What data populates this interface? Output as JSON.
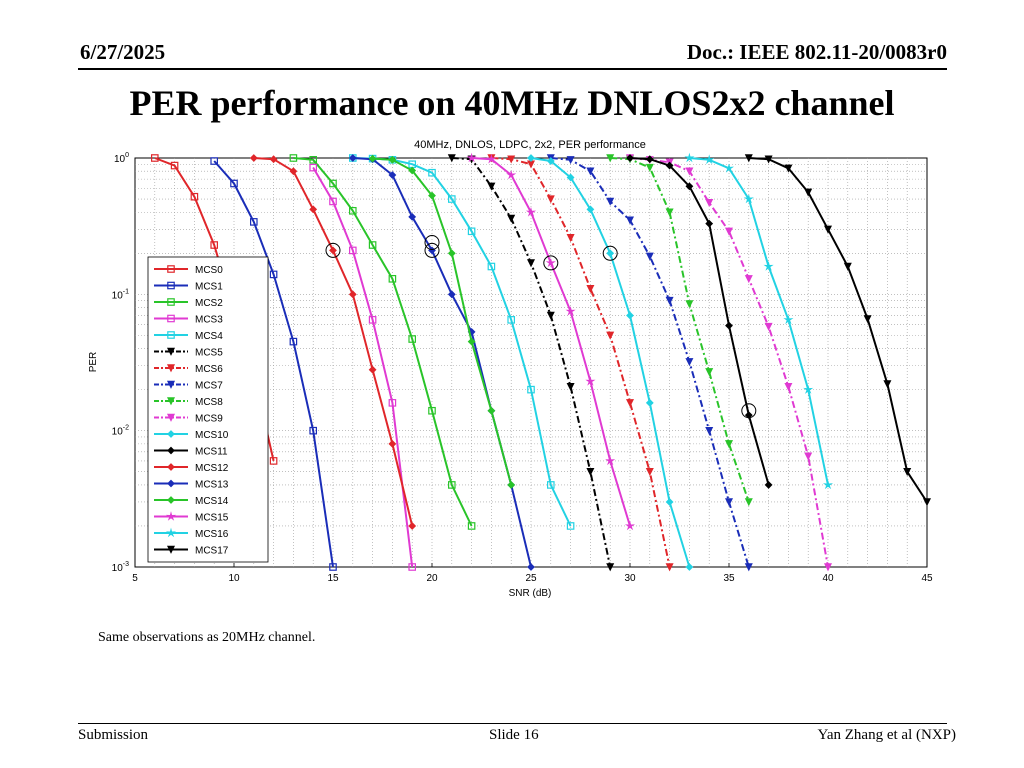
{
  "header": {
    "date": "6/27/2025",
    "doc_id": "Doc.: IEEE 802.11-20/0083r0"
  },
  "slide_title": "PER performance on 40MHz DNLOS2x2 channel",
  "note": "Same observations as 20MHz channel.",
  "footer": {
    "left": "Submission",
    "center": "Slide 16",
    "right": "Yan Zhang et al (NXP)"
  },
  "chart_data": {
    "type": "line",
    "title": "40MHz, DNLOS, LDPC, 2x2, PER performance",
    "xlabel": "SNR (dB)",
    "ylabel": "PER",
    "xlim": [
      5,
      45
    ],
    "ylim": [
      0.001,
      1
    ],
    "yscale": "log",
    "xticks": [
      5,
      10,
      15,
      20,
      25,
      30,
      35,
      40,
      45
    ],
    "yticks": [
      0.001,
      0.01,
      0.1,
      1
    ],
    "yticklabels": [
      {
        "base": "10",
        "exp": "-3"
      },
      {
        "base": "10",
        "exp": "-2"
      },
      {
        "base": "10",
        "exp": "-1"
      },
      {
        "base": "10",
        "exp": "0"
      }
    ],
    "grid": true,
    "legend_position": "left",
    "series": [
      {
        "name": "MCS0",
        "color": "#e0262a",
        "dash": "solid",
        "marker": "square",
        "x": [
          6,
          7,
          8,
          9,
          10,
          11,
          12
        ],
        "y": [
          1,
          0.88,
          0.52,
          0.23,
          0.075,
          0.026,
          0.006
        ]
      },
      {
        "name": "MCS1",
        "color": "#1a2db8",
        "dash": "solid",
        "marker": "square",
        "x": [
          9,
          10,
          11,
          12,
          13,
          14,
          15
        ],
        "y": [
          0.95,
          0.65,
          0.34,
          0.14,
          0.045,
          0.01,
          0.001
        ]
      },
      {
        "name": "MCS2",
        "color": "#29c429",
        "dash": "solid",
        "marker": "square",
        "x": [
          13,
          14,
          15,
          16,
          17,
          18,
          19,
          20,
          21,
          22
        ],
        "y": [
          1,
          0.97,
          0.65,
          0.41,
          0.23,
          0.13,
          0.047,
          0.014,
          0.004,
          0.002
        ]
      },
      {
        "name": "MCS3",
        "color": "#e03ad2",
        "dash": "solid",
        "marker": "square",
        "x": [
          14,
          15,
          16,
          17,
          18,
          19
        ],
        "y": [
          0.85,
          0.48,
          0.21,
          0.065,
          0.016,
          0.001
        ]
      },
      {
        "name": "MCS4",
        "color": "#22d2e3",
        "dash": "solid",
        "marker": "square",
        "x": [
          16,
          17,
          18,
          19,
          20,
          21,
          22,
          23,
          24,
          25,
          26,
          27
        ],
        "y": [
          1,
          0.99,
          0.97,
          0.9,
          0.78,
          0.5,
          0.29,
          0.16,
          0.065,
          0.02,
          0.004,
          0.002
        ]
      },
      {
        "name": "MCS5",
        "color": "#000000",
        "dash": "dashdot",
        "marker": "tri-down",
        "x": [
          21,
          22,
          23,
          24,
          25,
          26,
          27,
          28,
          29
        ],
        "y": [
          1,
          0.98,
          0.62,
          0.36,
          0.17,
          0.07,
          0.021,
          0.005,
          0.001
        ]
      },
      {
        "name": "MCS6",
        "color": "#e0262a",
        "dash": "dashdot",
        "marker": "tri-down",
        "x": [
          23,
          24,
          25,
          26,
          27,
          28,
          29,
          30,
          31,
          32
        ],
        "y": [
          1,
          0.98,
          0.9,
          0.5,
          0.26,
          0.11,
          0.05,
          0.016,
          0.005,
          0.001
        ]
      },
      {
        "name": "MCS7",
        "color": "#1a2db8",
        "dash": "dashdot",
        "marker": "tri-down",
        "x": [
          26,
          27,
          28,
          29,
          30,
          31,
          32,
          33,
          34,
          35,
          36
        ],
        "y": [
          1,
          0.97,
          0.8,
          0.48,
          0.35,
          0.19,
          0.09,
          0.032,
          0.01,
          0.003,
          0.001
        ]
      },
      {
        "name": "MCS8",
        "color": "#29c429",
        "dash": "dashdot",
        "marker": "tri-down",
        "x": [
          29,
          30,
          31,
          32,
          33,
          34,
          35,
          36
        ],
        "y": [
          1,
          0.98,
          0.85,
          0.4,
          0.085,
          0.027,
          0.008,
          0.003
        ]
      },
      {
        "name": "MCS9",
        "color": "#e03ad2",
        "dash": "dashdot",
        "marker": "tri-down",
        "x": [
          30,
          31,
          32,
          33,
          34,
          35,
          36,
          37,
          38,
          39,
          40
        ],
        "y": [
          1,
          0.97,
          0.93,
          0.8,
          0.47,
          0.29,
          0.13,
          0.058,
          0.021,
          0.0065,
          0.001
        ]
      },
      {
        "name": "MCS10",
        "color": "#22d2e3",
        "dash": "solid",
        "marker": "diamond",
        "x": [
          25,
          26,
          27,
          28,
          29,
          30,
          31,
          32,
          33
        ],
        "y": [
          1,
          0.95,
          0.72,
          0.42,
          0.2,
          0.07,
          0.016,
          0.003,
          0.001
        ]
      },
      {
        "name": "MCS11",
        "color": "#000000",
        "dash": "solid",
        "marker": "diamond",
        "x": [
          30,
          31,
          32,
          33,
          34,
          35,
          36,
          37
        ],
        "y": [
          1,
          0.98,
          0.88,
          0.62,
          0.33,
          0.059,
          0.013,
          0.004
        ]
      },
      {
        "name": "MCS12",
        "color": "#e0262a",
        "dash": "solid",
        "marker": "diamond",
        "x": [
          11,
          12,
          13,
          14,
          15,
          16,
          17,
          18,
          19
        ],
        "y": [
          1,
          0.98,
          0.8,
          0.42,
          0.21,
          0.1,
          0.028,
          0.008,
          0.002
        ]
      },
      {
        "name": "MCS13",
        "color": "#1a2db8",
        "dash": "solid",
        "marker": "diamond",
        "x": [
          16,
          17,
          18,
          19,
          20,
          21,
          22,
          23,
          24,
          25
        ],
        "y": [
          1,
          0.98,
          0.75,
          0.37,
          0.21,
          0.1,
          0.053,
          0.014,
          0.004,
          0.001
        ]
      },
      {
        "name": "MCS14",
        "color": "#29c429",
        "dash": "solid",
        "marker": "diamond",
        "x": [
          17,
          18,
          19,
          20,
          21,
          22,
          23,
          24
        ],
        "y": [
          0.99,
          0.97,
          0.81,
          0.53,
          0.2,
          0.045,
          0.014,
          0.004
        ]
      },
      {
        "name": "MCS15",
        "color": "#e03ad2",
        "dash": "solid",
        "marker": "star",
        "x": [
          22,
          23,
          24,
          25,
          26,
          27,
          28,
          29,
          30
        ],
        "y": [
          1,
          0.98,
          0.75,
          0.4,
          0.17,
          0.075,
          0.023,
          0.006,
          0.002
        ]
      },
      {
        "name": "MCS16",
        "color": "#22d2e3",
        "dash": "solid",
        "marker": "star",
        "x": [
          33,
          34,
          35,
          36,
          37,
          38,
          39,
          40
        ],
        "y": [
          1,
          0.97,
          0.84,
          0.5,
          0.16,
          0.065,
          0.02,
          0.004
        ]
      },
      {
        "name": "MCS17",
        "color": "#000000",
        "dash": "solid",
        "marker": "tri-down",
        "x": [
          36,
          37,
          38,
          39,
          40,
          41,
          42,
          43,
          44,
          45
        ],
        "y": [
          1,
          0.98,
          0.84,
          0.56,
          0.3,
          0.16,
          0.066,
          0.022,
          0.005,
          0.003
        ]
      }
    ],
    "highlight_points": [
      {
        "x": 15,
        "y": 0.21
      },
      {
        "x": 20,
        "y": 0.24
      },
      {
        "x": 20,
        "y": 0.21
      },
      {
        "x": 26,
        "y": 0.17
      },
      {
        "x": 29,
        "y": 0.2
      },
      {
        "x": 36,
        "y": 0.014
      }
    ]
  }
}
